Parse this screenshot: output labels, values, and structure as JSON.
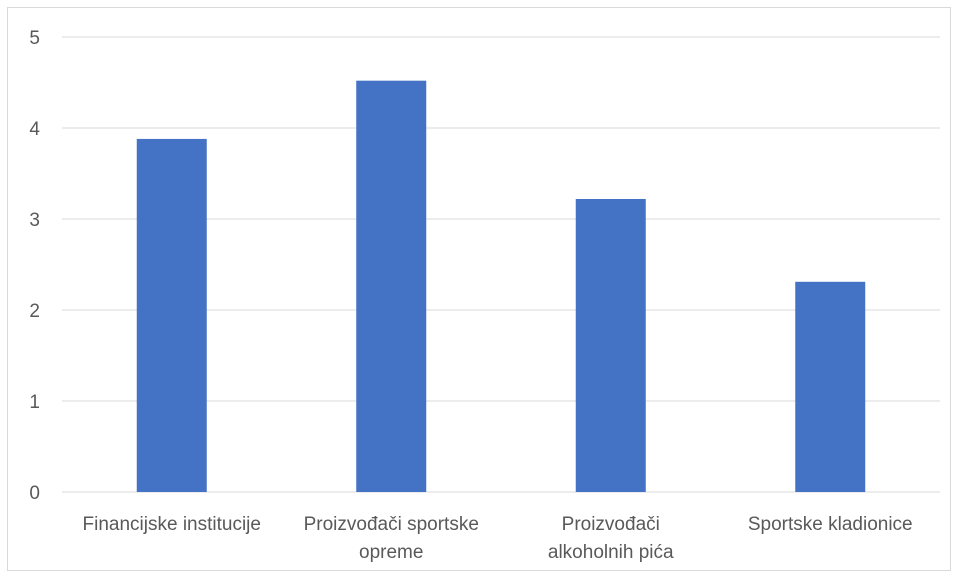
{
  "chart_data": {
    "type": "bar",
    "categories": [
      [
        "Financijske institucije"
      ],
      [
        "Proizvođači sportske",
        "opreme"
      ],
      [
        "Proizvođači",
        "alkoholnih pića"
      ],
      [
        "Sportske kladionice"
      ]
    ],
    "category_names": [
      "Financijske institucije",
      "Proizvođači sportske opreme",
      "Proizvođači alkoholnih pića",
      "Sportske kladionice"
    ],
    "values": [
      3.88,
      4.52,
      3.22,
      2.31
    ],
    "yticks": [
      "0",
      "1",
      "2",
      "3",
      "4",
      "5"
    ],
    "ylim": [
      0,
      5
    ],
    "grid": true,
    "legend": "none",
    "colors": {
      "bar": "#4472c4",
      "grid": "#d9d9d9",
      "axis_text": "#595959"
    }
  }
}
